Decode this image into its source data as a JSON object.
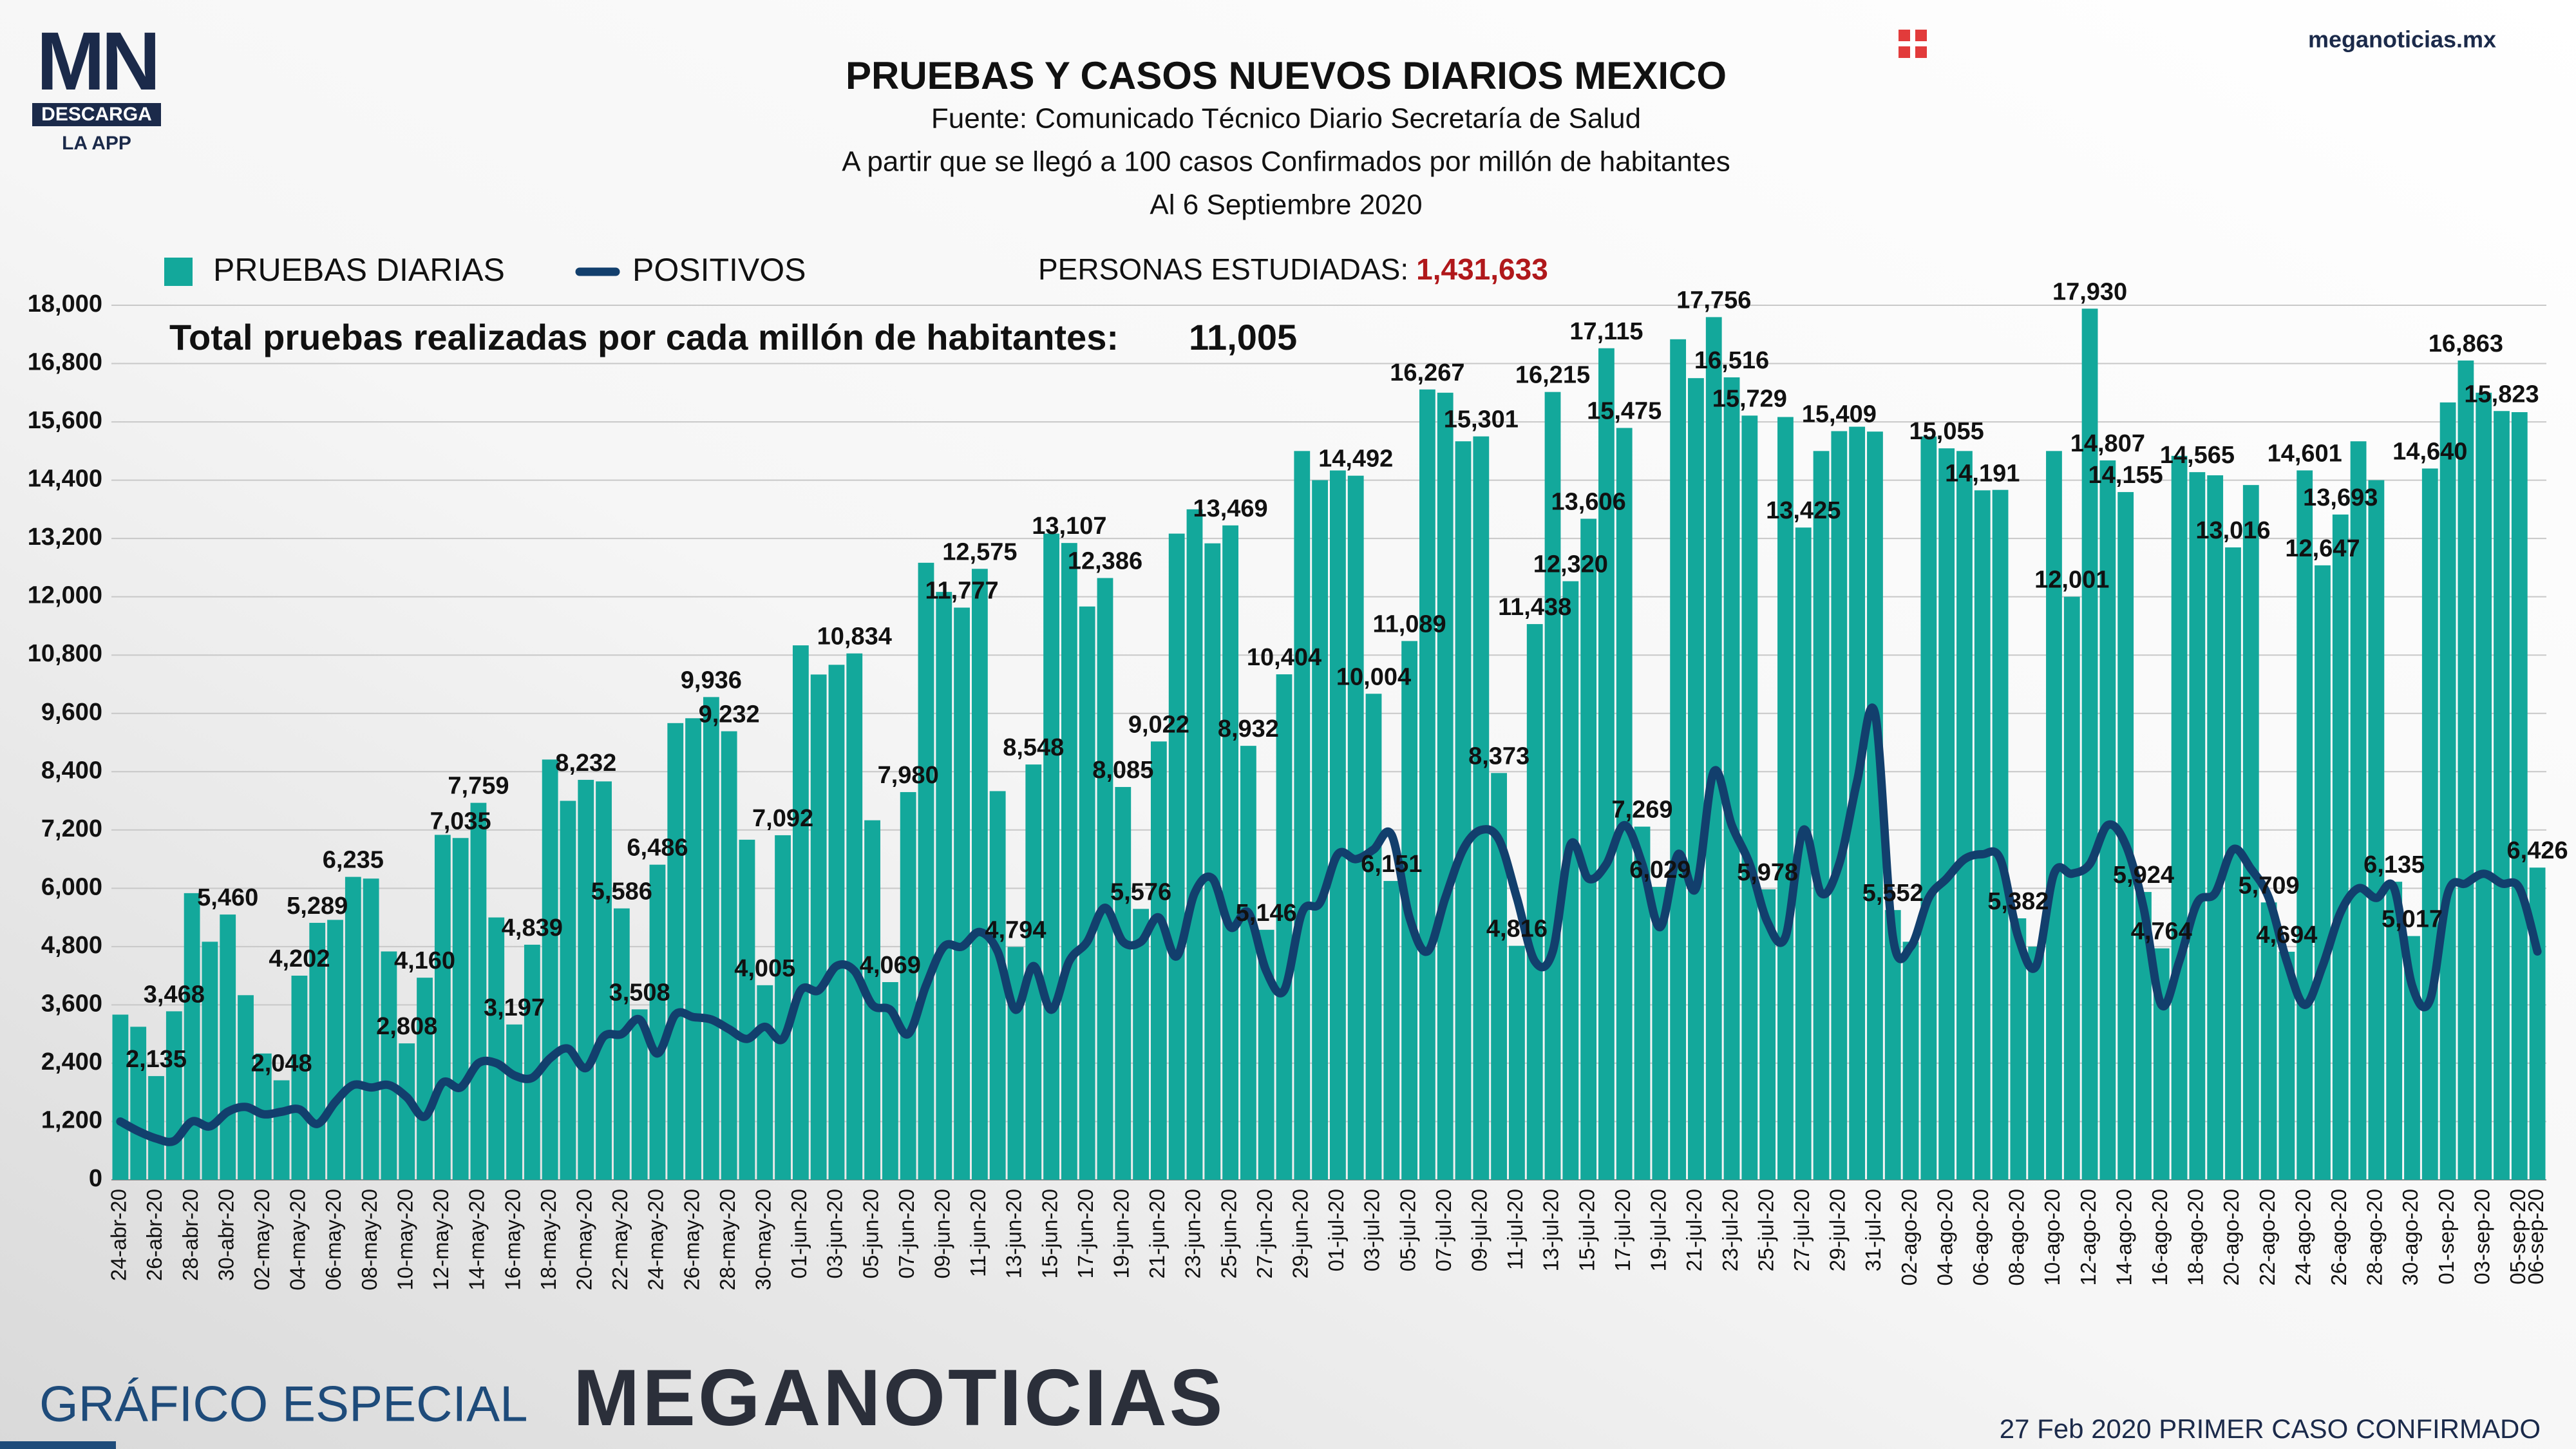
{
  "header": {
    "logo": "MN",
    "logo_badge": "DESCARGA",
    "logo_sub": "LA APP",
    "site": "meganoticias.mx"
  },
  "footer": {
    "left": "GRÁFICO ESPECIAL",
    "brand": "MEGANOTICIAS",
    "note": "27 Feb 2020 PRIMER CASO CONFIRMADO"
  },
  "chart_data": {
    "type": "bar",
    "title": "PRUEBAS Y CASOS NUEVOS DIARIOS MEXICO",
    "subtitles": [
      "Fuente: Comunicado Técnico Diario Secretaría de Salud",
      "A partir que se llegó a 100 casos Confirmados por millón de habitantes",
      "Al 6 Septiembre 2020"
    ],
    "annotations": {
      "persons_label": "PERSONAS ESTUDIADAS:",
      "persons_value": "1,431,633",
      "total_label": "Total pruebas realizadas por cada millón de habitantes:",
      "total_value": "11,005"
    },
    "grid": true,
    "ylim": [
      0,
      18000
    ],
    "yticks": [
      0,
      {
        "value": 1200,
        "label": "1,200"
      },
      {
        "value": 2400,
        "label": "2,400"
      },
      {
        "value": 3600,
        "label": "3,600"
      },
      {
        "value": 4800,
        "label": "4,800"
      },
      {
        "value": 6000,
        "label": "6,000"
      },
      {
        "value": 7200,
        "label": "7,200"
      },
      {
        "value": 8400,
        "label": "8,400"
      },
      {
        "value": 9600,
        "label": "9,600"
      },
      {
        "value": 10800,
        "label": "10,800"
      },
      {
        "value": 12000,
        "label": "12,000"
      },
      {
        "value": 13200,
        "label": "13,200"
      },
      {
        "value": 14400,
        "label": "14,400"
      },
      {
        "value": 15600,
        "label": "15,600"
      },
      {
        "value": 16800,
        "label": "16,800"
      },
      {
        "value": 18000,
        "label": "18,000"
      }
    ],
    "categories": [
      "24-abr-20",
      null,
      "26-abr-20",
      null,
      "28-abr-20",
      null,
      "30-abr-20",
      null,
      "02-may-20",
      null,
      "04-may-20",
      null,
      "06-may-20",
      null,
      "08-may-20",
      null,
      "10-may-20",
      null,
      "12-may-20",
      null,
      "14-may-20",
      null,
      "16-may-20",
      null,
      "18-may-20",
      null,
      "20-may-20",
      null,
      "22-may-20",
      null,
      "24-may-20",
      null,
      "26-may-20",
      null,
      "28-may-20",
      null,
      "30-may-20",
      null,
      "01-jun-20",
      null,
      "03-jun-20",
      null,
      "05-jun-20",
      null,
      "07-jun-20",
      null,
      "09-jun-20",
      null,
      "11-jun-20",
      null,
      "13-jun-20",
      null,
      "15-jun-20",
      null,
      "17-jun-20",
      null,
      "19-jun-20",
      null,
      "21-jun-20",
      null,
      "23-jun-20",
      null,
      "25-jun-20",
      null,
      "27-jun-20",
      null,
      "29-jun-20",
      null,
      "01-jul-20",
      null,
      "03-jul-20",
      null,
      "05-jul-20",
      null,
      "07-jul-20",
      null,
      "09-jul-20",
      null,
      "11-jul-20",
      null,
      "13-jul-20",
      null,
      "15-jul-20",
      null,
      "17-jul-20",
      null,
      "19-jul-20",
      null,
      "21-jul-20",
      null,
      "23-jul-20",
      null,
      "25-jul-20",
      null,
      "27-jul-20",
      null,
      "29-jul-20",
      null,
      "31-jul-20",
      null,
      "02-ago-20",
      null,
      "04-ago-20",
      null,
      "06-ago-20",
      null,
      "08-ago-20",
      null,
      "10-ago-20",
      null,
      "12-ago-20",
      null,
      "14-ago-20",
      null,
      "16-ago-20",
      null,
      "18-ago-20",
      null,
      "20-ago-20",
      null,
      "22-ago-20",
      null,
      "24-ago-20",
      null,
      "26-ago-20",
      null,
      "28-ago-20",
      null,
      "30-ago-20",
      null,
      "01-sep-20",
      null,
      "03-sep-20",
      null,
      "05-sep-20",
      "06-sep-20"
    ],
    "series": [
      {
        "name": "PRUEBAS DIARIAS",
        "type": "bar",
        "color": "#13a89b",
        "values": [
          3400,
          3150,
          2135,
          3468,
          5900,
          4900,
          5460,
          3800,
          2600,
          2048,
          4202,
          5289,
          5350,
          6235,
          6200,
          4700,
          2808,
          4160,
          7100,
          7035,
          7759,
          5400,
          3197,
          4839,
          8650,
          7800,
          8232,
          8200,
          5586,
          3508,
          6486,
          9400,
          9500,
          9936,
          9232,
          7000,
          4005,
          7092,
          11000,
          10400,
          10600,
          10834,
          7400,
          4069,
          7980,
          12700,
          12100,
          11777,
          12575,
          8000,
          4794,
          8548,
          13300,
          13107,
          11800,
          12386,
          8085,
          5576,
          9022,
          13300,
          13800,
          13100,
          13469,
          8932,
          5146,
          10404,
          15000,
          14400,
          14600,
          14492,
          10004,
          6151,
          11089,
          16267,
          16200,
          15200,
          15301,
          8373,
          4816,
          11438,
          16215,
          12320,
          13606,
          17115,
          15475,
          7269,
          6029,
          17300,
          16500,
          17756,
          16516,
          15729,
          5978,
          15700,
          13425,
          15000,
          15409,
          15500,
          15400,
          5552,
          4900,
          15300,
          15055,
          15000,
          14191,
          14200,
          5382,
          4800,
          15000,
          12001,
          17930,
          14807,
          14155,
          5924,
          4764,
          14900,
          14565,
          14500,
          13016,
          14300,
          5709,
          4694,
          14601,
          12647,
          13693,
          15200,
          14400,
          6135,
          5017,
          14640,
          16000,
          16863,
          16200,
          15823,
          15800,
          6426
        ],
        "value_labels": [
          null,
          null,
          "2,135",
          "3,468",
          null,
          null,
          "5,460",
          null,
          null,
          "2,048",
          "4,202",
          "5,289",
          null,
          "6,235",
          null,
          null,
          "2,808",
          "4,160",
          null,
          "7,035",
          "7,759",
          null,
          "3,197",
          "4,839",
          null,
          null,
          "8,232",
          null,
          "5,586",
          "3,508",
          "6,486",
          null,
          null,
          "9,936",
          "9,232",
          null,
          "4,005",
          "7,092",
          null,
          null,
          null,
          "10,834",
          null,
          "4,069",
          "7,980",
          null,
          null,
          "11,777",
          "12,575",
          null,
          "4,794",
          "8,548",
          null,
          "13,107",
          null,
          "12,386",
          "8,085",
          "5,576",
          "9,022",
          null,
          null,
          null,
          "13,469",
          "8,932",
          "5,146",
          "10,404",
          null,
          null,
          null,
          "14,492",
          "10,004",
          "6,151",
          "11,089",
          "16,267",
          null,
          null,
          "15,301",
          "8,373",
          "4,816",
          "11,438",
          "16,215",
          "12,320",
          "13,606",
          "17,115",
          "15,475",
          "7,269",
          "6,029",
          null,
          null,
          "17,756",
          "16,516",
          "15,729",
          "5,978",
          null,
          "13,425",
          null,
          "15,409",
          null,
          null,
          "5,552",
          null,
          null,
          "15,055",
          null,
          "14,191",
          null,
          "5,382",
          null,
          null,
          "12,001",
          "17,930",
          "14,807",
          "14,155",
          "5,924",
          "4,764",
          null,
          "14,565",
          null,
          "13,016",
          null,
          "5,709",
          "4,694",
          "14,601",
          "12,647",
          "13,693",
          null,
          null,
          "6,135",
          "5,017",
          "14,640",
          null,
          "16,863",
          null,
          "15,823",
          null,
          "6,426"
        ]
      },
      {
        "name": "POSITIVOS",
        "type": "line",
        "color": "#123f6d",
        "values": [
          1200,
          1000,
          850,
          800,
          1200,
          1100,
          1400,
          1500,
          1350,
          1400,
          1450,
          1150,
          1600,
          1950,
          1900,
          1950,
          1700,
          1300,
          2000,
          1900,
          2400,
          2400,
          2150,
          2100,
          2500,
          2700,
          2300,
          2950,
          3000,
          3300,
          2600,
          3400,
          3350,
          3300,
          3100,
          2900,
          3150,
          2900,
          3900,
          3900,
          4400,
          4300,
          3600,
          3500,
          3000,
          4000,
          4800,
          4800,
          5100,
          4700,
          3500,
          4400,
          3500,
          4500,
          4900,
          5600,
          4900,
          4900,
          5400,
          4600,
          5900,
          6200,
          5200,
          5500,
          4300,
          3900,
          5500,
          5700,
          6700,
          6600,
          6800,
          7100,
          5400,
          4700,
          5800,
          6800,
          7200,
          7000,
          5800,
          4500,
          4700,
          6900,
          6200,
          6500,
          7300,
          6500,
          5200,
          6700,
          6000,
          8400,
          7300,
          6500,
          5300,
          5000,
          7200,
          5900,
          6500,
          8200,
          9600,
          5000,
          4800,
          5800,
          6200,
          6600,
          6700,
          6600,
          5000,
          4400,
          6300,
          6300,
          6500,
          7300,
          6900,
          5600,
          3600,
          4500,
          5700,
          5900,
          6800,
          6400,
          5800,
          4500,
          3600,
          4400,
          5500,
          6000,
          5800,
          6000,
          4000,
          3700,
          5900,
          6100,
          6300,
          6100,
          6000,
          4700
        ]
      }
    ]
  }
}
